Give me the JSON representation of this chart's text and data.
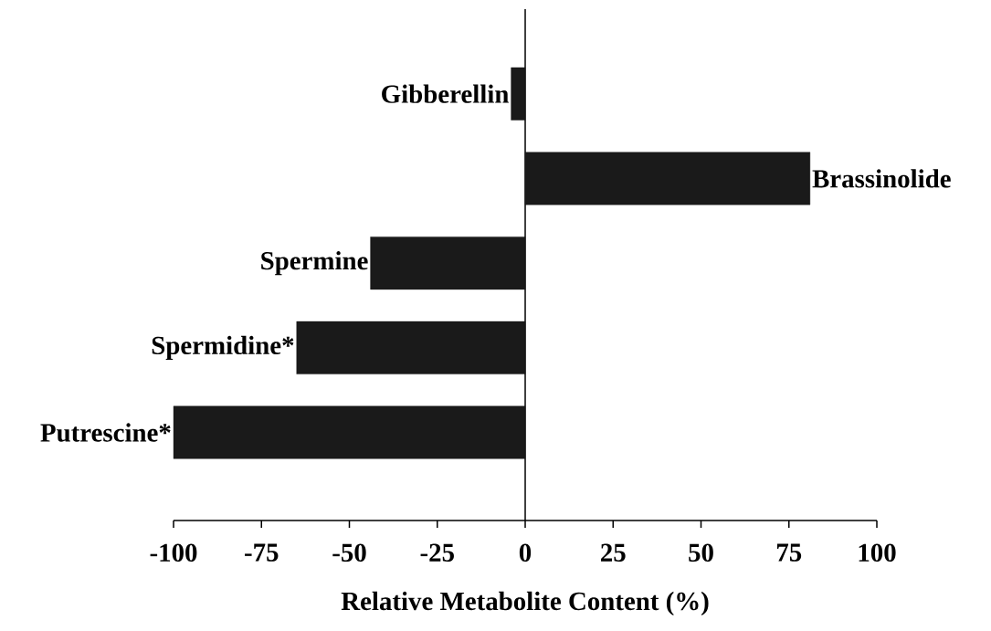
{
  "chart_data": {
    "type": "bar",
    "orientation": "horizontal",
    "xlabel": "Relative Metabolite Content (%)",
    "categories": [
      "Gibberellin",
      "Brassinolide",
      "Spermine",
      "Spermidine*",
      "Putrescine*"
    ],
    "values": [
      -4,
      81,
      -44,
      -65,
      -100
    ],
    "color": "#1a1a1a",
    "xlim": [
      -100,
      100
    ],
    "xticks": [
      -100,
      -75,
      -50,
      -25,
      0,
      25,
      50,
      75,
      100
    ]
  }
}
